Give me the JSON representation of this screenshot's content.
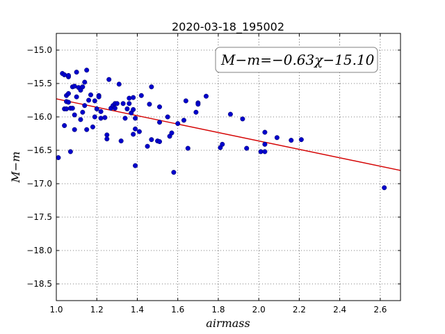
{
  "chart_data": {
    "type": "scatter",
    "title": "2020-03-18_195002",
    "xlabel": "airmass",
    "ylabel": "M−m",
    "xlim": [
      1.0,
      2.7
    ],
    "ylim": [
      -18.75,
      -14.75
    ],
    "xticks": [
      1.0,
      1.2,
      1.4,
      1.6,
      1.8,
      2.0,
      2.2,
      2.4,
      2.6
    ],
    "xtick_labels": [
      "1.0",
      "1.2",
      "1.4",
      "1.6",
      "1.8",
      "2.0",
      "2.2",
      "2.4",
      "2.6"
    ],
    "yticks": [
      -15.0,
      -15.5,
      -16.0,
      -16.5,
      -17.0,
      -17.5,
      -18.0,
      -18.5
    ],
    "ytick_labels": [
      "−15.0",
      "−15.5",
      "−16.0",
      "−16.5",
      "−17.0",
      "−17.5",
      "−18.0",
      "−18.5"
    ],
    "grid": true,
    "annotation": "M−m=−0.63χ−15.10",
    "fit": {
      "slope": -0.63,
      "intercept": -15.1,
      "color": "#d40000"
    },
    "marker_color": "#0000cc",
    "points": [
      [
        1.01,
        -16.61
      ],
      [
        1.03,
        -15.35
      ],
      [
        1.04,
        -15.37
      ],
      [
        1.04,
        -15.88
      ],
      [
        1.04,
        -16.13
      ],
      [
        1.05,
        -15.68
      ],
      [
        1.05,
        -15.88
      ],
      [
        1.05,
        -15.77
      ],
      [
        1.06,
        -15.78
      ],
      [
        1.06,
        -15.65
      ],
      [
        1.06,
        -15.4
      ],
      [
        1.06,
        -15.38
      ],
      [
        1.07,
        -15.87
      ],
      [
        1.07,
        -16.52
      ],
      [
        1.08,
        -15.87
      ],
      [
        1.08,
        -15.55
      ],
      [
        1.09,
        -15.54
      ],
      [
        1.09,
        -15.97
      ],
      [
        1.09,
        -16.19
      ],
      [
        1.1,
        -15.33
      ],
      [
        1.1,
        -15.7
      ],
      [
        1.11,
        -15.56
      ],
      [
        1.12,
        -15.6
      ],
      [
        1.12,
        -16.04
      ],
      [
        1.13,
        -15.93
      ],
      [
        1.13,
        -15.55
      ],
      [
        1.14,
        -15.83
      ],
      [
        1.14,
        -15.48
      ],
      [
        1.15,
        -15.3
      ],
      [
        1.15,
        -16.19
      ],
      [
        1.16,
        -15.75
      ],
      [
        1.17,
        -15.67
      ],
      [
        1.18,
        -16.15
      ],
      [
        1.19,
        -15.76
      ],
      [
        1.19,
        -16.0
      ],
      [
        1.2,
        -15.88
      ],
      [
        1.21,
        -15.68
      ],
      [
        1.21,
        -15.7
      ],
      [
        1.22,
        -15.92
      ],
      [
        1.22,
        -16.02
      ],
      [
        1.24,
        -16.01
      ],
      [
        1.25,
        -16.27
      ],
      [
        1.25,
        -16.33
      ],
      [
        1.26,
        -15.44
      ],
      [
        1.27,
        -15.87
      ],
      [
        1.28,
        -15.83
      ],
      [
        1.29,
        -15.8
      ],
      [
        1.29,
        -15.87
      ],
      [
        1.3,
        -15.8
      ],
      [
        1.31,
        -15.51
      ],
      [
        1.32,
        -16.36
      ],
      [
        1.33,
        -15.8
      ],
      [
        1.34,
        -16.02
      ],
      [
        1.35,
        -15.88
      ],
      [
        1.36,
        -15.72
      ],
      [
        1.36,
        -15.8
      ],
      [
        1.37,
        -15.94
      ],
      [
        1.38,
        -16.26
      ],
      [
        1.38,
        -15.71
      ],
      [
        1.38,
        -15.89
      ],
      [
        1.39,
        -16.02
      ],
      [
        1.39,
        -16.73
      ],
      [
        1.39,
        -16.18
      ],
      [
        1.41,
        -16.22
      ],
      [
        1.42,
        -15.68
      ],
      [
        1.45,
        -16.44
      ],
      [
        1.46,
        -15.81
      ],
      [
        1.47,
        -15.55
      ],
      [
        1.47,
        -16.34
      ],
      [
        1.5,
        -16.36
      ],
      [
        1.51,
        -15.85
      ],
      [
        1.51,
        -16.37
      ],
      [
        1.51,
        -16.08
      ],
      [
        1.55,
        -16.0
      ],
      [
        1.56,
        -16.29
      ],
      [
        1.57,
        -16.24
      ],
      [
        1.58,
        -16.83
      ],
      [
        1.6,
        -16.1
      ],
      [
        1.63,
        -16.05
      ],
      [
        1.64,
        -15.76
      ],
      [
        1.65,
        -16.47
      ],
      [
        1.69,
        -15.93
      ],
      [
        1.7,
        -15.79
      ],
      [
        1.7,
        -15.81
      ],
      [
        1.74,
        -15.69
      ],
      [
        1.81,
        -16.46
      ],
      [
        1.82,
        -16.41
      ],
      [
        1.86,
        -15.96
      ],
      [
        1.92,
        -16.03
      ],
      [
        1.94,
        -16.47
      ],
      [
        2.01,
        -16.52
      ],
      [
        2.03,
        -16.52
      ],
      [
        2.03,
        -16.23
      ],
      [
        2.03,
        -16.41
      ],
      [
        2.09,
        -16.31
      ],
      [
        2.16,
        -16.35
      ],
      [
        2.21,
        -16.34
      ],
      [
        2.62,
        -17.06
      ]
    ]
  }
}
